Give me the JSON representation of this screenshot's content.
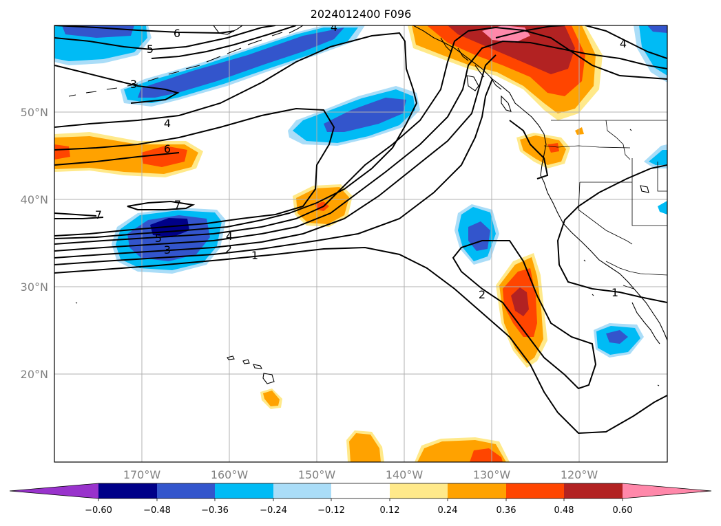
{
  "map": {
    "title": "2024012400 F096",
    "lat_labels": [
      "50°N",
      "40°N",
      "30°N",
      "20°N"
    ],
    "lon_labels": [
      "170°W",
      "160°W",
      "150°W",
      "140°W",
      "130°W",
      "120°W"
    ],
    "contour_labels": [
      "6",
      "5",
      "3",
      "4",
      "6",
      "7",
      "7",
      "5",
      "3",
      "4",
      "2",
      "1",
      "2",
      "4",
      "1",
      "4"
    ]
  },
  "colorbar": {
    "tick_labels": [
      "−0.60",
      "−0.48",
      "−0.36",
      "−0.24",
      "−0.12",
      "0.12",
      "0.24",
      "0.36",
      "0.48",
      "0.60"
    ],
    "colors": [
      "#9933cc",
      "#000088",
      "#3355cc",
      "#00bbf5",
      "#aaddf8",
      "#ffffff",
      "#ffe98a",
      "#ffa200",
      "#ff4500",
      "#b22222",
      "#ff88aa",
      "#ff88aa"
    ]
  }
}
